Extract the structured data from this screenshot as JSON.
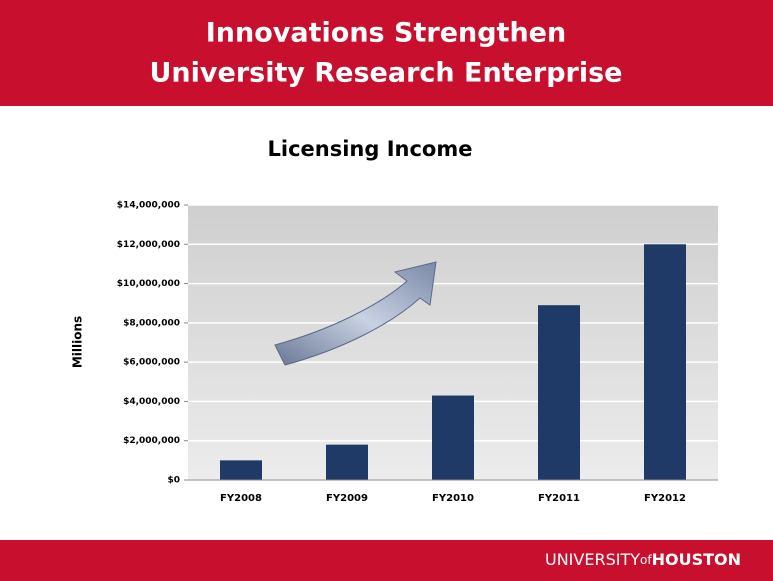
{
  "header": {
    "title_lines": [
      "Innovations Strengthen",
      "University Research Enterprise"
    ]
  },
  "chart_data": {
    "type": "bar",
    "title": "Licensing Income",
    "y_label": "Millions",
    "categories": [
      "FY2008",
      "FY2009",
      "FY2010",
      "FY2011",
      "FY2012"
    ],
    "values": [
      1000000,
      1800000,
      4300000,
      8900000,
      12000000
    ],
    "color": "#1f3a66",
    "ylim": [
      0,
      14000000
    ],
    "yticks": [
      0,
      {
        "value": 2000000,
        "label": "$2,000,000"
      },
      {
        "value": 4000000,
        "label": "$4,000,000"
      },
      {
        "value": 6000000,
        "label": "$6,000,000"
      },
      {
        "value": 8000000,
        "label": "$8,000,000"
      },
      {
        "value": 10000000,
        "label": "$10,000,000"
      },
      {
        "value": 12000000,
        "label": "$12,000,000"
      },
      {
        "value": 14000000,
        "label": "$14,000,000"
      }
    ],
    "ytick_zero_label": "$0",
    "grid": true
  },
  "footer": {
    "brand": [
      "UNIVERSITY",
      "of",
      "HOUSTON"
    ]
  }
}
